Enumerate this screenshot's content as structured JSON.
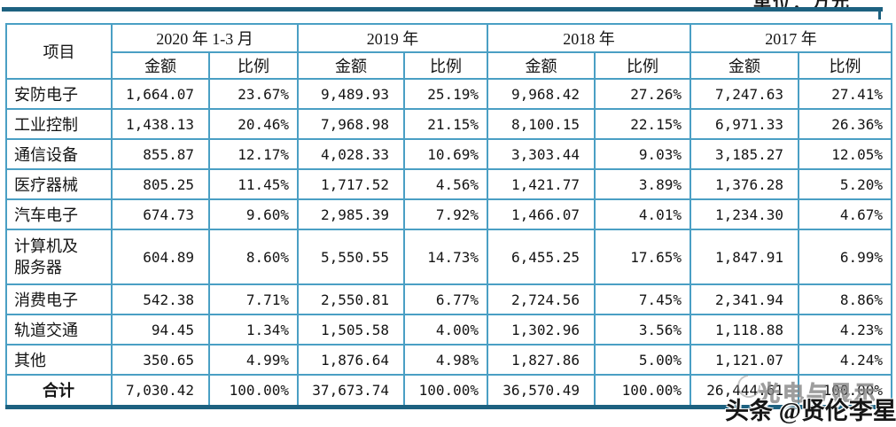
{
  "units_label": "单位：万元",
  "table": {
    "corner_header": "项目",
    "year_headers": [
      "2020 年 1-3 月",
      "2019 年",
      "2018 年",
      "2017 年"
    ],
    "sub_headers": {
      "amount": "金额",
      "ratio": "比例"
    },
    "rows": [
      {
        "label": "安防电子",
        "values": [
          "1,664.07",
          "23.67%",
          "9,489.93",
          "25.19%",
          "9,968.42",
          "27.26%",
          "7,247.63",
          "27.41%"
        ]
      },
      {
        "label": "工业控制",
        "values": [
          "1,438.13",
          "20.46%",
          "7,968.98",
          "21.15%",
          "8,100.15",
          "22.15%",
          "6,971.33",
          "26.36%"
        ]
      },
      {
        "label": "通信设备",
        "values": [
          "855.87",
          "12.17%",
          "4,028.33",
          "10.69%",
          "3,303.44",
          "9.03%",
          "3,185.27",
          "12.05%"
        ]
      },
      {
        "label": "医疗器械",
        "values": [
          "805.25",
          "11.45%",
          "1,717.52",
          "4.56%",
          "1,421.77",
          "3.89%",
          "1,376.28",
          "5.20%"
        ]
      },
      {
        "label": "汽车电子",
        "values": [
          "674.73",
          "9.60%",
          "2,985.39",
          "7.92%",
          "1,466.07",
          "4.01%",
          "1,234.30",
          "4.67%"
        ]
      },
      {
        "label": "计算机及服务器",
        "values": [
          "604.89",
          "8.60%",
          "5,550.55",
          "14.73%",
          "6,455.25",
          "17.65%",
          "1,847.91",
          "6.99%"
        ]
      },
      {
        "label": "消费电子",
        "values": [
          "542.38",
          "7.71%",
          "2,550.81",
          "6.77%",
          "2,724.56",
          "7.45%",
          "2,341.94",
          "8.86%"
        ]
      },
      {
        "label": "轨道交通",
        "values": [
          "94.45",
          "1.34%",
          "1,505.58",
          "4.00%",
          "1,302.96",
          "3.56%",
          "1,118.88",
          "4.23%"
        ]
      },
      {
        "label": "其他",
        "values": [
          "350.65",
          "4.99%",
          "1,876.64",
          "4.98%",
          "1,827.86",
          "5.00%",
          "1,121.07",
          "4.24%"
        ]
      }
    ],
    "total_row": {
      "label": "合计",
      "values": [
        "7,030.42",
        "100.00%",
        "37,673.74",
        "100.00%",
        "36,570.49",
        "100.00%",
        "26,444.61",
        "100.00%"
      ]
    }
  },
  "watermark": {
    "line1": "光电与显示",
    "line2": "头条 @贤伦李星"
  },
  "colors": {
    "border_light": "#4a9fc4",
    "rule_dark": "#1d6180",
    "text": "#141414"
  }
}
